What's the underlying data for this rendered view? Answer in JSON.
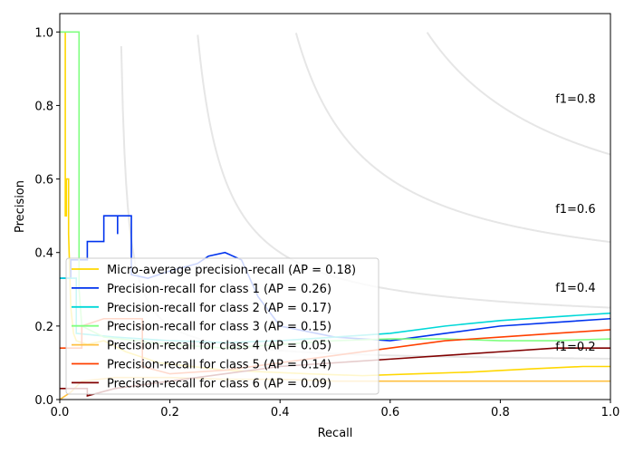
{
  "chart_data": {
    "type": "line",
    "xlabel": "Recall",
    "ylabel": "Precision",
    "xlim": [
      0,
      1
    ],
    "ylim": [
      0,
      1.05
    ],
    "xticks": [
      "0.0",
      "0.2",
      "0.4",
      "0.6",
      "0.8",
      "1.0"
    ],
    "yticks": [
      "0.0",
      "0.2",
      "0.4",
      "0.6",
      "0.8",
      "1.0"
    ],
    "grid": false,
    "legend_position": "lower-left",
    "iso_f1": [
      {
        "f1": 0.2,
        "label": "f1=0.2"
      },
      {
        "f1": 0.4,
        "label": "f1=0.4"
      },
      {
        "f1": 0.6,
        "label": "f1=0.6"
      },
      {
        "f1": 0.8,
        "label": "f1=0.8"
      }
    ],
    "series": [
      {
        "name": "Micro-average precision-recall (AP = 0.18)",
        "color": "#ffd700",
        "points": [
          [
            0,
            1.0
          ],
          [
            0.01,
            1.0
          ],
          [
            0.01,
            0.5
          ],
          [
            0.012,
            0.5
          ],
          [
            0.012,
            0.6
          ],
          [
            0.016,
            0.6
          ],
          [
            0.016,
            0.45
          ],
          [
            0.02,
            0.25
          ],
          [
            0.025,
            0.18
          ],
          [
            0.03,
            0.16
          ],
          [
            0.05,
            0.15
          ],
          [
            0.08,
            0.16
          ],
          [
            0.12,
            0.13
          ],
          [
            0.18,
            0.1
          ],
          [
            0.3,
            0.08
          ],
          [
            0.45,
            0.07
          ],
          [
            0.55,
            0.065
          ],
          [
            0.65,
            0.07
          ],
          [
            0.75,
            0.075
          ],
          [
            0.85,
            0.083
          ],
          [
            0.95,
            0.09
          ],
          [
            1.0,
            0.09
          ]
        ]
      },
      {
        "name": "Precision-recall for class 1 (AP = 0.26)",
        "color": "#0033ee",
        "points": [
          [
            0,
            0.33
          ],
          [
            0.02,
            0.33
          ],
          [
            0.02,
            0.38
          ],
          [
            0.05,
            0.38
          ],
          [
            0.05,
            0.43
          ],
          [
            0.08,
            0.43
          ],
          [
            0.08,
            0.5
          ],
          [
            0.105,
            0.5
          ],
          [
            0.105,
            0.45
          ],
          [
            0.105,
            0.5
          ],
          [
            0.13,
            0.5
          ],
          [
            0.13,
            0.34
          ],
          [
            0.16,
            0.33
          ],
          [
            0.2,
            0.35
          ],
          [
            0.25,
            0.37
          ],
          [
            0.27,
            0.39
          ],
          [
            0.3,
            0.4
          ],
          [
            0.33,
            0.38
          ],
          [
            0.36,
            0.28
          ],
          [
            0.4,
            0.2
          ],
          [
            0.5,
            0.17
          ],
          [
            0.6,
            0.16
          ],
          [
            0.7,
            0.18
          ],
          [
            0.8,
            0.2
          ],
          [
            0.9,
            0.21
          ],
          [
            1.0,
            0.22
          ]
        ]
      },
      {
        "name": "Precision-recall for class 2 (AP = 0.17)",
        "color": "#00d8d8",
        "points": [
          [
            0,
            0.33
          ],
          [
            0.03,
            0.33
          ],
          [
            0.03,
            0.18
          ],
          [
            0.1,
            0.17
          ],
          [
            0.2,
            0.16
          ],
          [
            0.3,
            0.155
          ],
          [
            0.4,
            0.16
          ],
          [
            0.5,
            0.17
          ],
          [
            0.6,
            0.18
          ],
          [
            0.7,
            0.2
          ],
          [
            0.8,
            0.215
          ],
          [
            0.9,
            0.225
          ],
          [
            1.0,
            0.235
          ]
        ]
      },
      {
        "name": "Precision-recall for class 3 (AP = 0.15)",
        "color": "#80ff80",
        "points": [
          [
            0,
            1.0
          ],
          [
            0.035,
            1.0
          ],
          [
            0.035,
            0.3
          ],
          [
            0.04,
            0.2
          ],
          [
            0.08,
            0.17
          ],
          [
            0.2,
            0.15
          ],
          [
            0.3,
            0.14
          ],
          [
            0.4,
            0.15
          ],
          [
            0.5,
            0.16
          ],
          [
            0.6,
            0.165
          ],
          [
            0.7,
            0.165
          ],
          [
            0.8,
            0.16
          ],
          [
            0.9,
            0.16
          ],
          [
            1.0,
            0.165
          ]
        ]
      },
      {
        "name": "Precision-recall for class 4 (AP = 0.05)",
        "color": "#ffc040",
        "points": [
          [
            0,
            0.0
          ],
          [
            0.02,
            0.02
          ],
          [
            0.04,
            0.05
          ],
          [
            0.1,
            0.06
          ],
          [
            0.2,
            0.06
          ],
          [
            0.3,
            0.055
          ],
          [
            0.4,
            0.055
          ],
          [
            0.5,
            0.05
          ],
          [
            0.6,
            0.05
          ],
          [
            0.7,
            0.05
          ],
          [
            0.8,
            0.05
          ],
          [
            0.9,
            0.05
          ],
          [
            1.0,
            0.05
          ]
        ]
      },
      {
        "name": "Precision-recall for class 5 (AP = 0.14)",
        "color": "#ff4000",
        "points": [
          [
            0,
            0.14
          ],
          [
            0.04,
            0.14
          ],
          [
            0.04,
            0.2
          ],
          [
            0.08,
            0.22
          ],
          [
            0.15,
            0.22
          ],
          [
            0.15,
            0.09
          ],
          [
            0.2,
            0.07
          ],
          [
            0.3,
            0.08
          ],
          [
            0.4,
            0.1
          ],
          [
            0.5,
            0.12
          ],
          [
            0.6,
            0.14
          ],
          [
            0.7,
            0.16
          ],
          [
            0.8,
            0.17
          ],
          [
            0.9,
            0.18
          ],
          [
            1.0,
            0.19
          ]
        ]
      },
      {
        "name": "Precision-recall for class 6 (AP = 0.09)",
        "color": "#800000",
        "points": [
          [
            0,
            0.03
          ],
          [
            0.05,
            0.03
          ],
          [
            0.05,
            0.01
          ],
          [
            0.1,
            0.03
          ],
          [
            0.2,
            0.05
          ],
          [
            0.3,
            0.07
          ],
          [
            0.4,
            0.09
          ],
          [
            0.5,
            0.1
          ],
          [
            0.6,
            0.11
          ],
          [
            0.7,
            0.12
          ],
          [
            0.8,
            0.13
          ],
          [
            0.9,
            0.14
          ],
          [
            1.0,
            0.14
          ]
        ]
      }
    ]
  }
}
